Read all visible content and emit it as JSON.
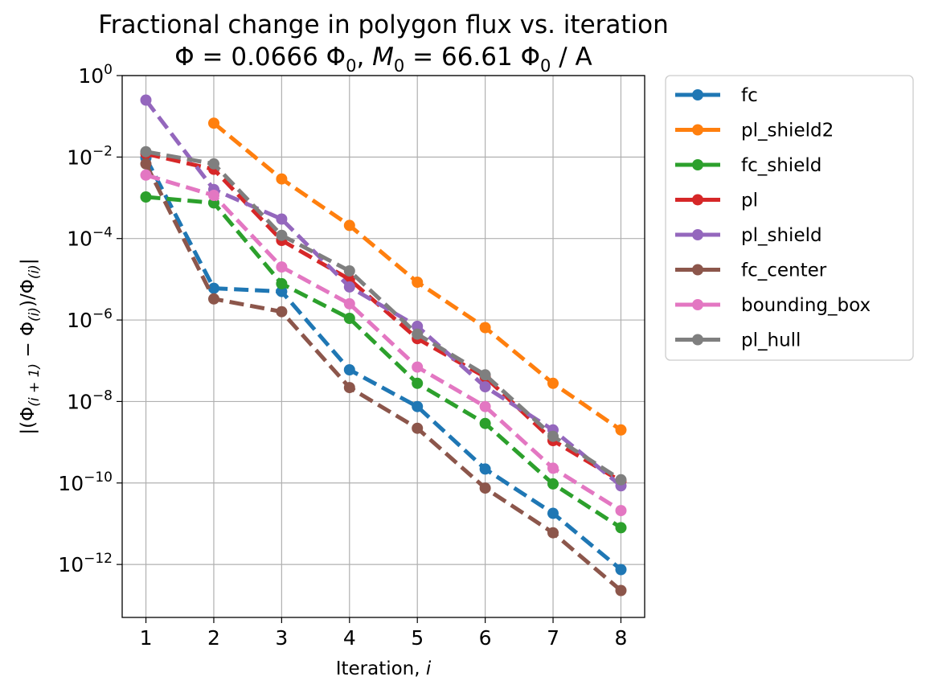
{
  "chart_data": {
    "type": "line",
    "title": "Fractional change in polygon flux vs. iteration",
    "subtitle": {
      "phi_label": "Φ = 0.0666 Φ",
      "phi_sub": "0",
      "sep": ", ",
      "m_label": "M",
      "m_sub": "0",
      "m_value": " = 66.61 Φ",
      "m_value_sub": "0",
      "m_unit": " / A"
    },
    "xlabel": {
      "text": "Iteration, ",
      "var": "i"
    },
    "ylabel": {
      "open": "|(Φ",
      "sub1": "(i + 1)",
      "minus": " − Φ",
      "sub2": "(i)",
      "slash": ")/Φ",
      "sub3": "(i)",
      "close": "|"
    },
    "x": [
      1,
      2,
      3,
      4,
      5,
      6,
      7,
      8
    ],
    "xlim": [
      0.65,
      8.35
    ],
    "ylim_exp": [
      -13.3,
      0
    ],
    "yscale": "log",
    "y_ticks": [
      {
        "base": "10",
        "exp": "0",
        "value": 0
      },
      {
        "base": "10",
        "exp": "−2",
        "value": -2
      },
      {
        "base": "10",
        "exp": "−4",
        "value": -4
      },
      {
        "base": "10",
        "exp": "−6",
        "value": -6
      },
      {
        "base": "10",
        "exp": "−8",
        "value": -8
      },
      {
        "base": "10",
        "exp": "−10",
        "value": -10
      },
      {
        "base": "10",
        "exp": "−12",
        "value": -12
      }
    ],
    "x_ticks": [
      "1",
      "2",
      "3",
      "4",
      "5",
      "6",
      "7",
      "8"
    ],
    "grid": true,
    "legend_position": "outside-right",
    "series": [
      {
        "name": "fc",
        "color": "#1f77b4",
        "x": [
          1,
          2,
          3,
          4,
          5,
          6,
          7,
          8
        ],
        "values": [
          0.0095,
          6e-06,
          5e-06,
          6e-08,
          7.5e-09,
          2.2e-10,
          1.8e-11,
          7.5e-13
        ]
      },
      {
        "name": "pl_shield2",
        "color": "#ff7f0e",
        "x": [
          2,
          3,
          4,
          5,
          6,
          7,
          8
        ],
        "values": [
          0.068,
          0.0029,
          0.00021,
          8.5e-06,
          6.5e-07,
          2.8e-08,
          2e-09
        ]
      },
      {
        "name": "fc_shield",
        "color": "#2ca02c",
        "x": [
          1,
          2,
          3,
          4,
          5,
          6,
          7,
          8
        ],
        "values": [
          0.00105,
          0.00075,
          7.8e-06,
          1.1e-06,
          2.8e-08,
          2.9e-09,
          9.5e-11,
          8e-12
        ]
      },
      {
        "name": "pl",
        "color": "#d62728",
        "x": [
          1,
          2,
          3,
          4,
          5,
          6,
          7,
          8
        ],
        "values": [
          0.012,
          0.005,
          9e-05,
          1e-05,
          3.5e-07,
          4e-08,
          1.1e-09,
          1.1e-10
        ]
      },
      {
        "name": "pl_shield",
        "color": "#9467bd",
        "x": [
          1,
          2,
          3,
          4,
          5,
          6,
          7,
          8
        ],
        "values": [
          0.25,
          0.0016,
          0.0003,
          6.5e-06,
          7e-07,
          2.3e-08,
          2e-09,
          8.5e-11
        ]
      },
      {
        "name": "fc_center",
        "color": "#8c564b",
        "x": [
          1,
          2,
          3,
          4,
          5,
          6,
          7,
          8
        ],
        "values": [
          0.0068,
          3.3e-06,
          1.6e-06,
          2.2e-08,
          2.2e-09,
          7.5e-11,
          6e-12,
          2.3e-13
        ]
      },
      {
        "name": "bounding_box",
        "color": "#e377c2",
        "x": [
          1,
          2,
          3,
          4,
          5,
          6,
          7,
          8
        ],
        "values": [
          0.0036,
          0.00115,
          2e-05,
          2.5e-06,
          7e-08,
          7.5e-09,
          2.3e-10,
          2.1e-11
        ]
      },
      {
        "name": "pl_hull",
        "color": "#7f7f7f",
        "x": [
          1,
          2,
          3,
          4,
          5,
          6,
          7,
          8
        ],
        "values": [
          0.0135,
          0.0068,
          0.00012,
          1.6e-05,
          4.5e-07,
          4.5e-08,
          1.4e-09,
          1.2e-10
        ]
      }
    ]
  }
}
